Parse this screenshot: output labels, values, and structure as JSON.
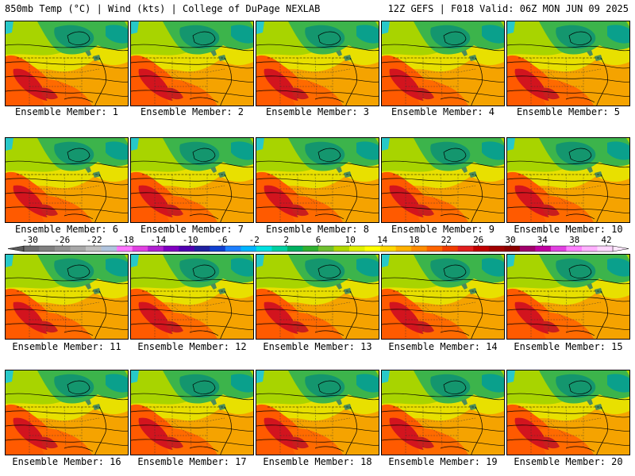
{
  "header": {
    "left": "850mb Temp (°C) | Wind (kts) | College of DuPage NEXLAB",
    "right": "12Z GEFS | F018 Valid: 06Z MON JUN 09 2025"
  },
  "members": [
    "Ensemble Member: 1",
    "Ensemble Member: 2",
    "Ensemble Member: 3",
    "Ensemble Member: 4",
    "Ensemble Member: 5",
    "Ensemble Member: 6",
    "Ensemble Member: 7",
    "Ensemble Member: 8",
    "Ensemble Member: 9",
    "Ensemble Member: 10",
    "Ensemble Member: 11",
    "Ensemble Member: 12",
    "Ensemble Member: 13",
    "Ensemble Member: 14",
    "Ensemble Member: 15",
    "Ensemble Member: 16",
    "Ensemble Member: 17",
    "Ensemble Member: 18",
    "Ensemble Member: 19",
    "Ensemble Member: 20"
  ],
  "colorbar": {
    "labels": [
      "-30",
      "-26",
      "-22",
      "-18",
      "-14",
      "-10",
      "-6",
      "-2",
      "2",
      "6",
      "10",
      "14",
      "18",
      "22",
      "26",
      "30",
      "34",
      "38",
      "42"
    ],
    "colors": [
      "#6e6e6e",
      "#808080",
      "#929292",
      "#a8a8a8",
      "#c0c0c0",
      "#b0c4de",
      "#ff77ff",
      "#e040e0",
      "#b020d0",
      "#8000c0",
      "#5000b0",
      "#2020a0",
      "#1040d0",
      "#1e7fff",
      "#00b4ff",
      "#00e0e0",
      "#00d0a0",
      "#00b060",
      "#30b030",
      "#70c030",
      "#b0d800",
      "#e0f000",
      "#ffff00",
      "#ffd700",
      "#ffb000",
      "#ff8c00",
      "#ff6400",
      "#f03c00",
      "#e01e1e",
      "#c00000",
      "#a00000",
      "#8b0000",
      "#a0006a",
      "#c000a0",
      "#e040e0",
      "#ff80ff",
      "#ffb0ff",
      "#ffd8ff"
    ]
  }
}
